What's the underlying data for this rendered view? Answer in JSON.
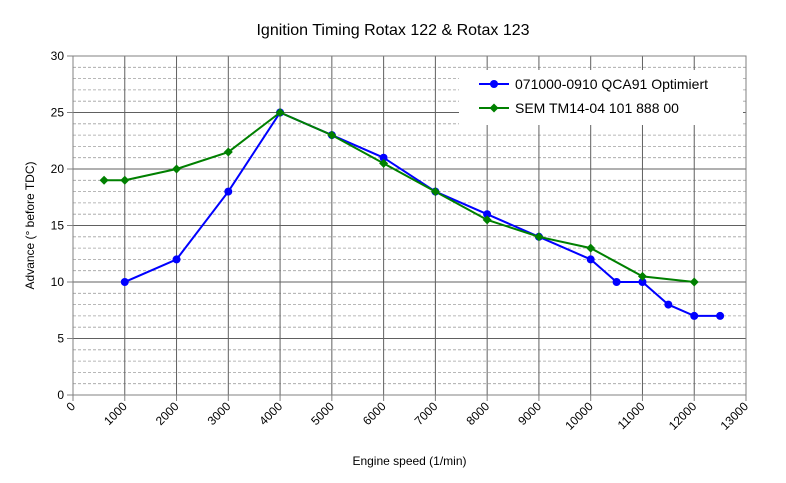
{
  "chart_data": {
    "type": "line",
    "title": "Ignition Timing Rotax 122 & Rotax 123",
    "xlabel": "Engine speed (1/min)",
    "ylabel": "Advance (° before TDC)",
    "xlim": [
      0,
      13000
    ],
    "ylim": [
      0,
      30
    ],
    "x_ticks": [
      "0",
      "1000",
      "2000",
      "3000",
      "4000",
      "5000",
      "6000",
      "7000",
      "8000",
      "9000",
      "10000",
      "11000",
      "12000",
      "13000"
    ],
    "y_ticks": [
      "0",
      "5",
      "10",
      "15",
      "20",
      "25",
      "30"
    ],
    "grid": true,
    "legend_position": "top-right",
    "series": [
      {
        "name": "071000-0910 QCA91 Optimiert",
        "color": "#0000ff",
        "marker": "circle",
        "x": [
          1000,
          2000,
          3000,
          4000,
          5000,
          6000,
          7000,
          8000,
          9000,
          10000,
          10500,
          11000,
          11500,
          12000,
          12500
        ],
        "y": [
          10,
          12,
          18,
          25,
          23,
          21,
          18,
          16,
          14,
          12,
          10,
          10,
          8,
          7,
          7
        ]
      },
      {
        "name": "SEM TM14-04 101 888 00",
        "color": "#008000",
        "marker": "diamond",
        "x": [
          600,
          1000,
          2000,
          3000,
          4000,
          5000,
          6000,
          7000,
          8000,
          9000,
          10000,
          11000,
          12000
        ],
        "y": [
          19,
          19,
          20,
          21.5,
          25,
          23,
          20.5,
          18,
          15.5,
          14,
          13,
          10.5,
          10
        ]
      }
    ]
  }
}
